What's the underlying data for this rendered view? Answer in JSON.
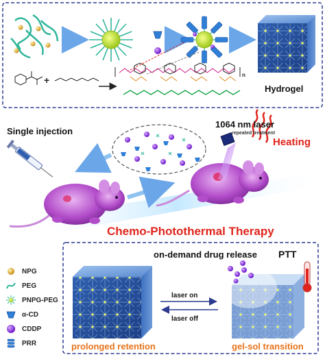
{
  "synthesis": {
    "product_label": "Hydrogel",
    "plus_sign": "+",
    "polymer_repeat_n": "n"
  },
  "treatment": {
    "single_injection": "Single injection",
    "laser_label": "1064 nm laser",
    "laser_sub": "repeated treatment",
    "heating": "Heating",
    "therapy_title": "Chemo-Photothermal Therapy"
  },
  "release": {
    "title": "on-demand drug release",
    "ptt": "PTT",
    "laser_on": "laser on",
    "laser_off": "laser off",
    "left_caption": "prolonged retention",
    "right_caption": "gel-sol transition"
  },
  "legend": [
    {
      "label": "NPG",
      "icon": "gold-sphere-icon"
    },
    {
      "label": "PEG",
      "icon": "green-chain-icon"
    },
    {
      "label": "PNPG-PEG",
      "icon": "star-micelle-icon"
    },
    {
      "label": "α-CD",
      "icon": "blue-cone-icon"
    },
    {
      "label": "CDDP",
      "icon": "purple-sphere-icon"
    },
    {
      "label": "PRR",
      "icon": "blue-spiral-icon"
    }
  ],
  "colors": {
    "frame_blue": "#2b3a8f",
    "therapy_red": "#e0241b",
    "caption_orange": "#e8731a",
    "gel_blue": "#5b86c8",
    "cddp_purple": "#8a2be2",
    "npg_gold": "#e0a826",
    "peg_green": "#2fb59a"
  }
}
